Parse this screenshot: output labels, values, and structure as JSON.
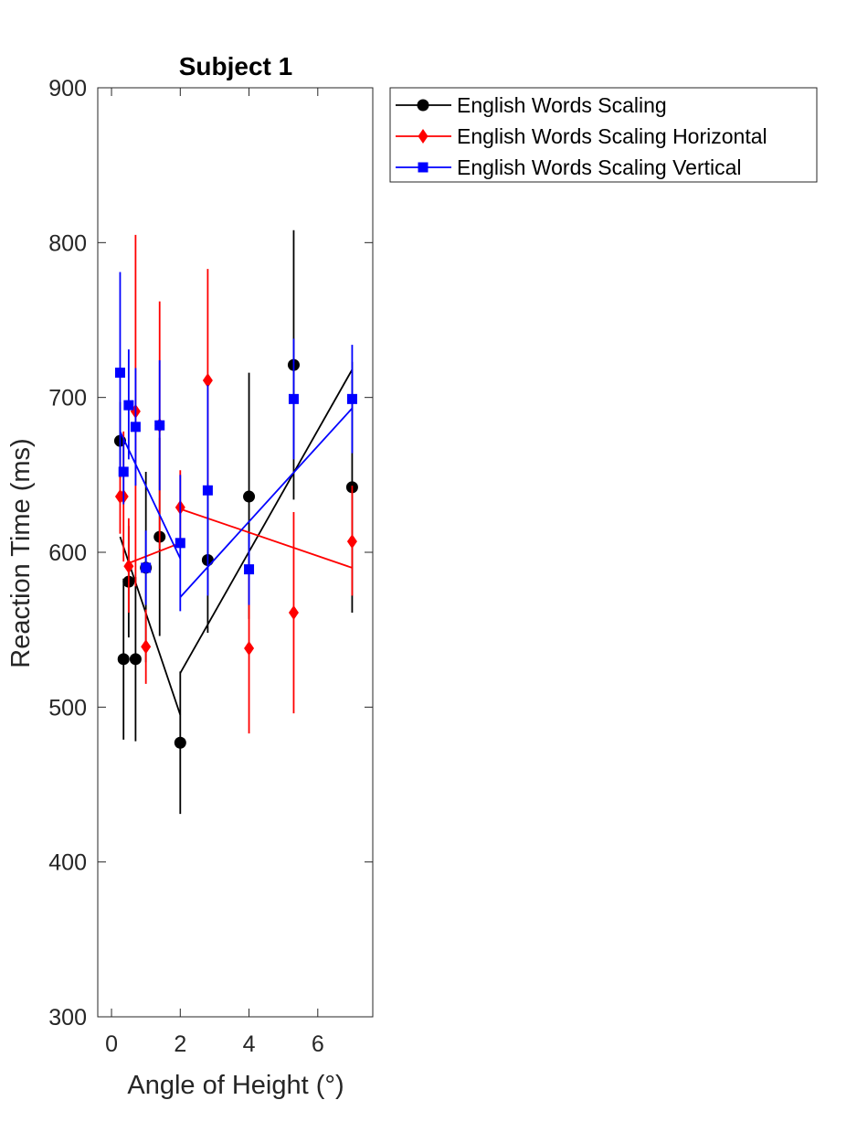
{
  "chart_data": {
    "type": "line",
    "title": "Subject 1",
    "xlabel": "Angle of Height (°)",
    "ylabel": "Reaction Time (ms)",
    "xlim": [
      -0.4,
      7.6
    ],
    "ylim": [
      300,
      900
    ],
    "xticks": [
      0,
      2,
      4,
      6
    ],
    "yticks": [
      300,
      400,
      500,
      600,
      700,
      800,
      900
    ],
    "grid": false,
    "legend_position": "outside-top-right",
    "series": [
      {
        "name": "English Words Scaling",
        "color": "#000000",
        "marker": "circle",
        "points": [
          {
            "x": 0.25,
            "y": 672,
            "lo": 648,
            "hi": 697
          },
          {
            "x": 0.35,
            "y": 531,
            "lo": 479,
            "hi": 583
          },
          {
            "x": 0.5,
            "y": 581,
            "lo": 545,
            "hi": 617
          },
          {
            "x": 0.7,
            "y": 531,
            "lo": 478,
            "hi": 584
          },
          {
            "x": 1.0,
            "y": 590,
            "lo": 529,
            "hi": 652
          },
          {
            "x": 1.4,
            "y": 610,
            "lo": 546,
            "hi": 674
          },
          {
            "x": 2.0,
            "y": 477,
            "lo": 431,
            "hi": 523
          },
          {
            "x": 2.8,
            "y": 595,
            "lo": 548,
            "hi": 642
          },
          {
            "x": 4.0,
            "y": 636,
            "lo": 557,
            "hi": 716
          },
          {
            "x": 5.3,
            "y": 721,
            "lo": 634,
            "hi": 808
          },
          {
            "x": 7.0,
            "y": 642,
            "lo": 561,
            "hi": 723
          }
        ],
        "fit_segments": [
          [
            [
              0.25,
              610
            ],
            [
              2.0,
              495
            ]
          ],
          [
            [
              2.0,
              522
            ],
            [
              7.0,
              718
            ]
          ]
        ]
      },
      {
        "name": "English Words Scaling Horizontal",
        "color": "#ff0000",
        "marker": "diamond",
        "points": [
          {
            "x": 0.25,
            "y": 636,
            "lo": 612,
            "hi": 660
          },
          {
            "x": 0.35,
            "y": 636,
            "lo": 594,
            "hi": 678
          },
          {
            "x": 0.5,
            "y": 591,
            "lo": 561,
            "hi": 622
          },
          {
            "x": 0.7,
            "y": 691,
            "lo": 578,
            "hi": 805
          },
          {
            "x": 1.0,
            "y": 539,
            "lo": 515,
            "hi": 563
          },
          {
            "x": 1.4,
            "y": 682,
            "lo": 602,
            "hi": 762
          },
          {
            "x": 2.0,
            "y": 629,
            "lo": 605,
            "hi": 653
          },
          {
            "x": 2.8,
            "y": 711,
            "lo": 640,
            "hi": 783
          },
          {
            "x": 4.0,
            "y": 538,
            "lo": 483,
            "hi": 593
          },
          {
            "x": 5.3,
            "y": 561,
            "lo": 496,
            "hi": 626
          },
          {
            "x": 7.0,
            "y": 607,
            "lo": 572,
            "hi": 643
          }
        ],
        "fit_segments": [
          [
            [
              0.5,
              593
            ],
            [
              2.0,
              606
            ]
          ],
          [
            [
              2.0,
              628
            ],
            [
              7.0,
              590
            ]
          ]
        ]
      },
      {
        "name": "English Words Scaling Vertical",
        "color": "#0000ff",
        "marker": "square",
        "points": [
          {
            "x": 0.25,
            "y": 716,
            "lo": 651,
            "hi": 781
          },
          {
            "x": 0.35,
            "y": 652,
            "lo": 631,
            "hi": 673
          },
          {
            "x": 0.5,
            "y": 695,
            "lo": 660,
            "hi": 731
          },
          {
            "x": 0.7,
            "y": 681,
            "lo": 643,
            "hi": 719
          },
          {
            "x": 1.0,
            "y": 590,
            "lo": 566,
            "hi": 614
          },
          {
            "x": 1.4,
            "y": 682,
            "lo": 640,
            "hi": 724
          },
          {
            "x": 2.0,
            "y": 606,
            "lo": 562,
            "hi": 650
          },
          {
            "x": 2.8,
            "y": 640,
            "lo": 572,
            "hi": 708
          },
          {
            "x": 4.0,
            "y": 589,
            "lo": 566,
            "hi": 612
          },
          {
            "x": 5.3,
            "y": 699,
            "lo": 660,
            "hi": 738
          },
          {
            "x": 7.0,
            "y": 699,
            "lo": 664,
            "hi": 734
          }
        ],
        "fit_segments": [
          [
            [
              0.25,
              678
            ],
            [
              2.0,
              596
            ]
          ],
          [
            [
              2.0,
              571
            ],
            [
              7.0,
              693
            ]
          ]
        ]
      }
    ]
  }
}
